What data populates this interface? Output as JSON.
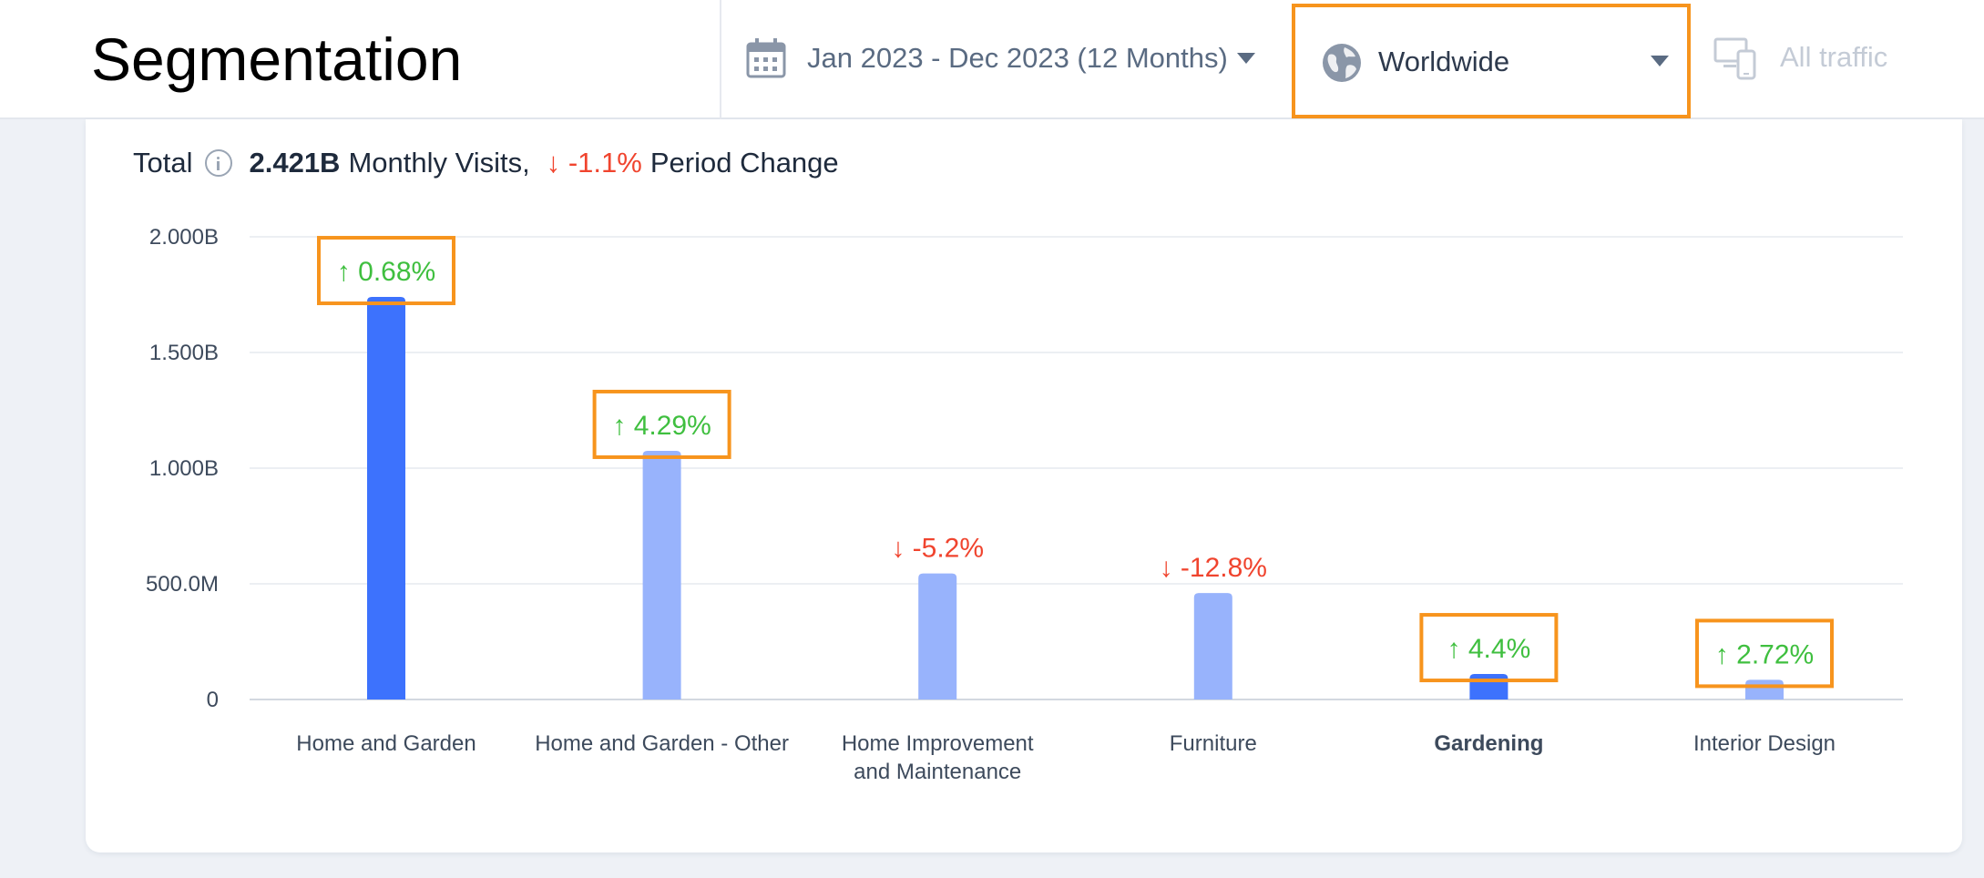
{
  "header": {
    "title": "Segmentation",
    "date_range": "Jan 2023 - Dec 2023 (12 Months)",
    "region": "Worldwide",
    "traffic": "All traffic"
  },
  "summary": {
    "label": "Total",
    "visits": "2.421B",
    "visits_suffix": "Monthly Visits,",
    "change": "-1.1%",
    "change_suffix": "Period Change"
  },
  "colors": {
    "bar_primary": "#3d72fd",
    "bar_secondary": "#98b3fc",
    "up": "#3fbf3f",
    "down": "#f0442e",
    "highlight": "#f7941d"
  },
  "chart_data": {
    "type": "bar",
    "categories": [
      "Home and Garden",
      "Home and Garden - Other",
      "Home Improvement and Maintenance",
      "Furniture",
      "Gardening",
      "Interior Design"
    ],
    "values": [
      1.74,
      1.075,
      0.545,
      0.46,
      0.11,
      0.085
    ],
    "changes": [
      "0.68%",
      "4.29%",
      "-5.2%",
      "-12.8%",
      "4.4%",
      "2.72%"
    ],
    "change_directions": [
      "up",
      "up",
      "down",
      "down",
      "up",
      "up"
    ],
    "highlighted": [
      true,
      true,
      false,
      false,
      true,
      true
    ],
    "bar_styles": [
      "primary",
      "secondary",
      "secondary",
      "secondary",
      "primary",
      "secondary"
    ],
    "bold_labels": [
      false,
      false,
      false,
      false,
      true,
      false
    ],
    "yticks": [
      0,
      0.5,
      1,
      1.5,
      2
    ],
    "ytick_labels": [
      "0",
      "500.0M",
      "1.000B",
      "1.500B",
      "2.000B"
    ],
    "ylim": [
      0,
      2
    ],
    "yunit": "B monthly visits",
    "grid": true
  }
}
